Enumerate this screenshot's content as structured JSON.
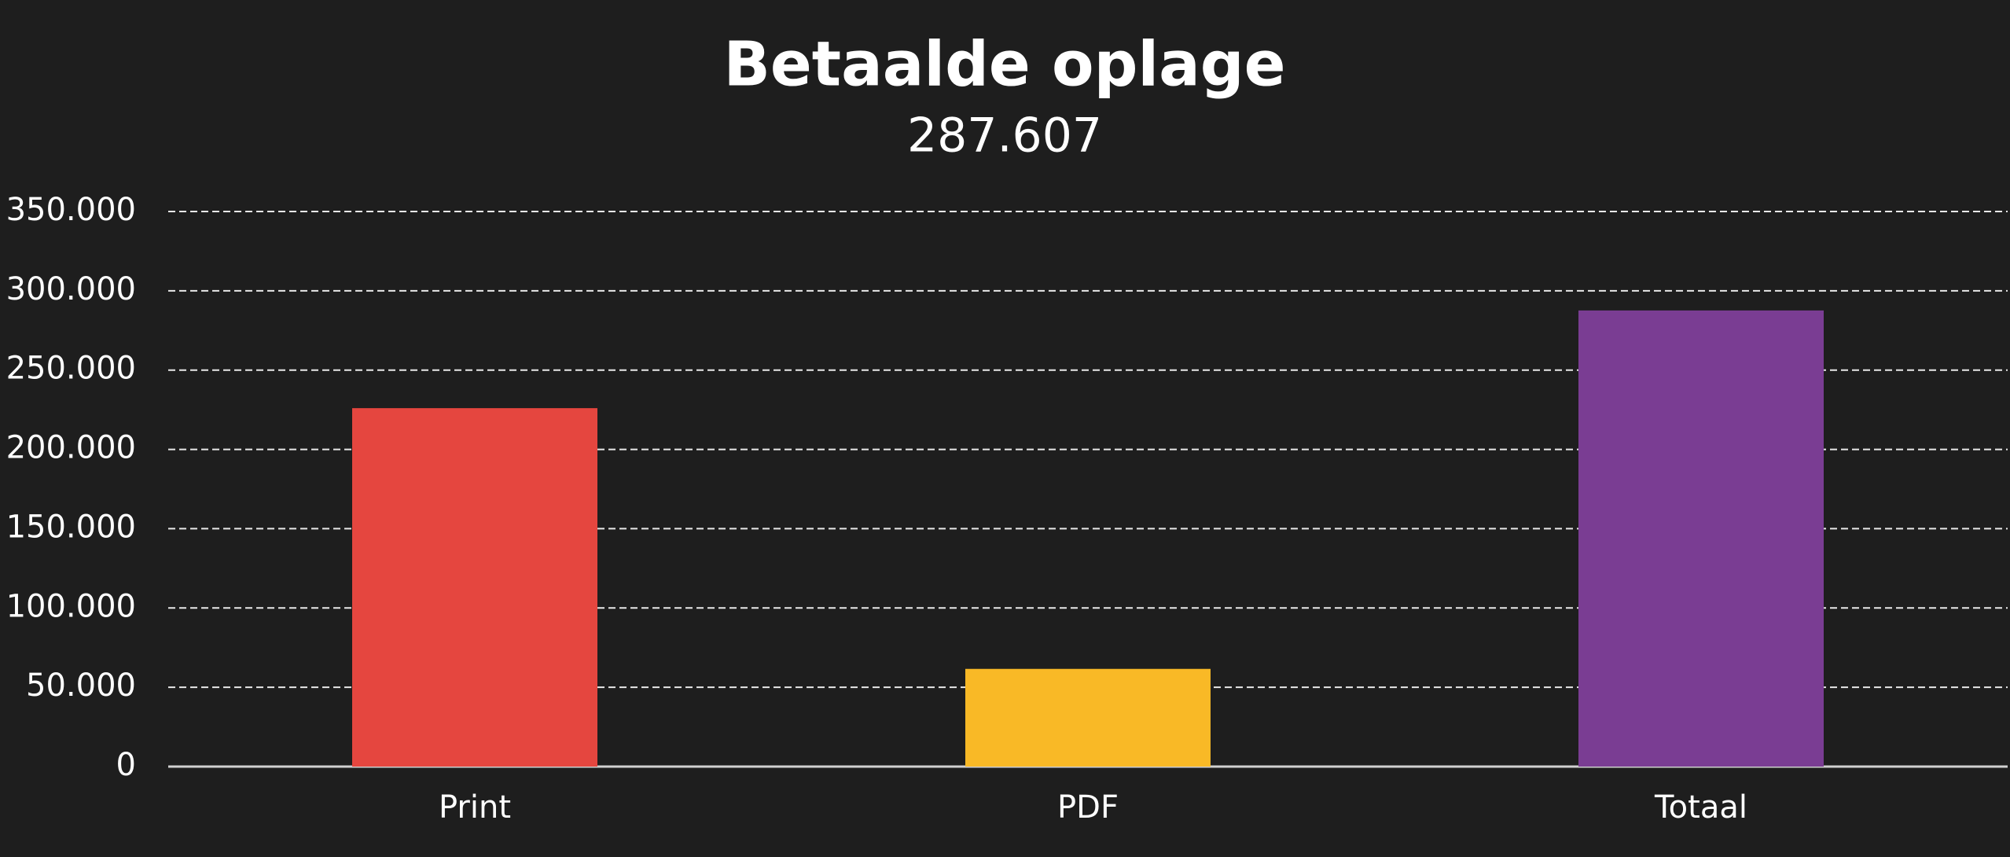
{
  "chart_data": {
    "type": "bar",
    "title": "Betaalde oplage",
    "subtitle": "287.607",
    "categories": [
      "Print",
      "PDF",
      "Totaal"
    ],
    "values": [
      226000,
      61600,
      287607
    ],
    "colors": [
      "#e5463f",
      "#f9b926",
      "#7a3d93"
    ],
    "ylim": [
      0,
      350000
    ],
    "yticks": [
      0,
      {
        "value": 50000,
        "label": "50.000"
      },
      {
        "value": 100000,
        "label": "100.000"
      },
      {
        "value": 150000,
        "label": "150.000"
      },
      {
        "value": 200000,
        "label": "200.000"
      },
      {
        "value": 250000,
        "label": "250.000"
      },
      {
        "value": 300000,
        "label": "300.000"
      },
      {
        "value": 350000,
        "label": "350.000"
      }
    ],
    "grid": true
  }
}
